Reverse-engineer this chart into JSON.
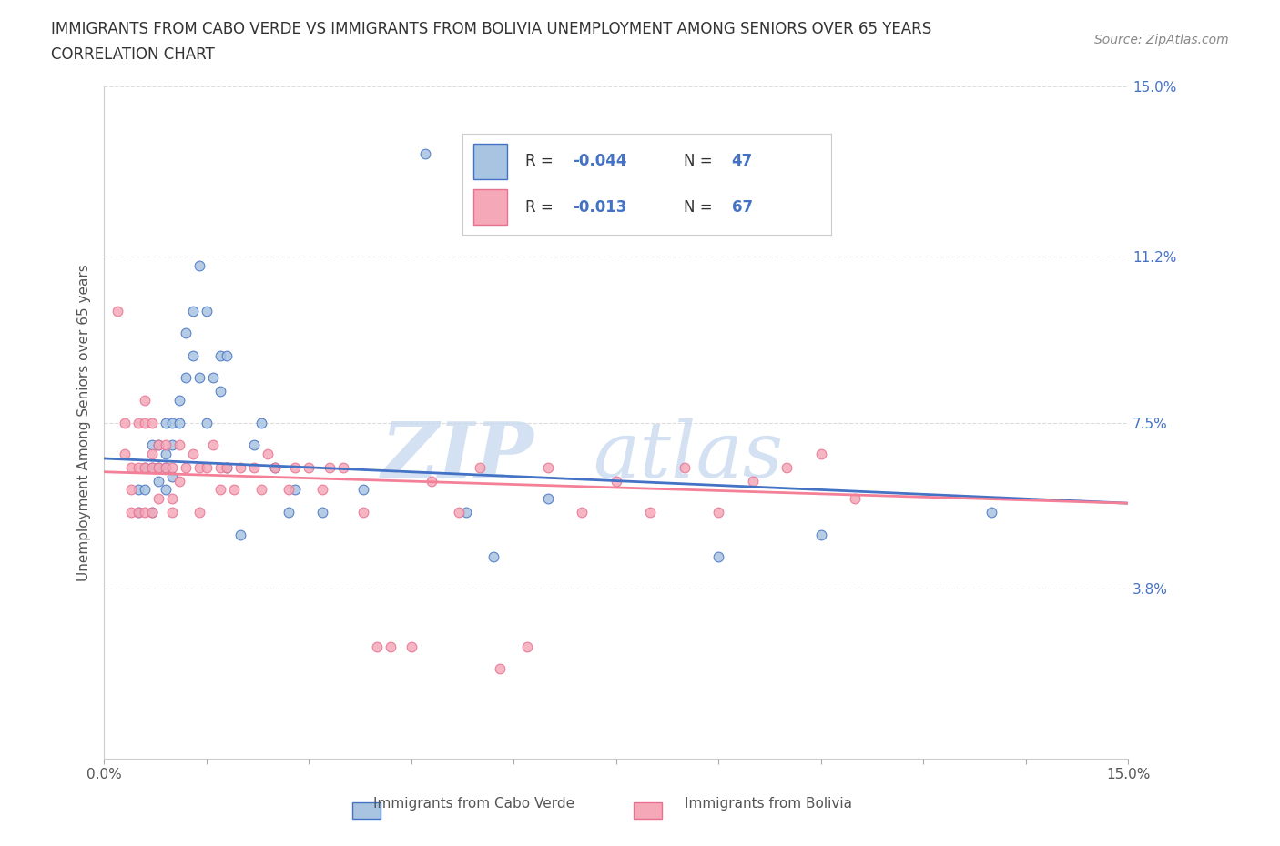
{
  "title_line1": "IMMIGRANTS FROM CABO VERDE VS IMMIGRANTS FROM BOLIVIA UNEMPLOYMENT AMONG SENIORS OVER 65 YEARS",
  "title_line2": "CORRELATION CHART",
  "source_text": "Source: ZipAtlas.com",
  "ylabel": "Unemployment Among Seniors over 65 years",
  "xmin": 0.0,
  "xmax": 0.15,
  "ymin": 0.0,
  "ymax": 0.15,
  "yticks_right": [
    0.038,
    0.075,
    0.112,
    0.15
  ],
  "ytick_labels_right": [
    "3.8%",
    "7.5%",
    "11.2%",
    "15.0%"
  ],
  "legend_r1": "-0.044",
  "legend_n1": "47",
  "legend_r2": "-0.013",
  "legend_n2": "67",
  "cabo_verde_color": "#a8c4e0",
  "bolivia_color": "#f4a8b8",
  "cabo_verde_edge_color": "#4472c4",
  "bolivia_edge_color": "#e87090",
  "cabo_verde_line_color": "#4472c4",
  "bolivia_line_color": "#f48098",
  "cabo_verde_scatter_x": [
    0.005,
    0.005,
    0.006,
    0.006,
    0.007,
    0.007,
    0.007,
    0.008,
    0.008,
    0.008,
    0.009,
    0.009,
    0.009,
    0.009,
    0.01,
    0.01,
    0.01,
    0.011,
    0.011,
    0.012,
    0.012,
    0.013,
    0.013,
    0.014,
    0.014,
    0.015,
    0.015,
    0.016,
    0.017,
    0.017,
    0.018,
    0.018,
    0.02,
    0.022,
    0.023,
    0.025,
    0.027,
    0.028,
    0.032,
    0.038,
    0.047,
    0.053,
    0.057,
    0.065,
    0.09,
    0.105,
    0.13
  ],
  "cabo_verde_scatter_y": [
    0.06,
    0.055,
    0.065,
    0.06,
    0.07,
    0.065,
    0.055,
    0.07,
    0.065,
    0.062,
    0.075,
    0.068,
    0.065,
    0.06,
    0.075,
    0.07,
    0.063,
    0.08,
    0.075,
    0.095,
    0.085,
    0.1,
    0.09,
    0.085,
    0.11,
    0.075,
    0.1,
    0.085,
    0.082,
    0.09,
    0.09,
    0.065,
    0.05,
    0.07,
    0.075,
    0.065,
    0.055,
    0.06,
    0.055,
    0.06,
    0.135,
    0.055,
    0.045,
    0.058,
    0.045,
    0.05,
    0.055
  ],
  "bolivia_scatter_x": [
    0.002,
    0.003,
    0.003,
    0.004,
    0.004,
    0.004,
    0.005,
    0.005,
    0.005,
    0.006,
    0.006,
    0.006,
    0.006,
    0.007,
    0.007,
    0.007,
    0.007,
    0.008,
    0.008,
    0.008,
    0.009,
    0.009,
    0.01,
    0.01,
    0.01,
    0.011,
    0.011,
    0.012,
    0.013,
    0.014,
    0.014,
    0.015,
    0.016,
    0.017,
    0.017,
    0.018,
    0.019,
    0.02,
    0.022,
    0.023,
    0.024,
    0.025,
    0.027,
    0.028,
    0.03,
    0.032,
    0.033,
    0.035,
    0.038,
    0.04,
    0.042,
    0.045,
    0.048,
    0.052,
    0.055,
    0.058,
    0.062,
    0.065,
    0.07,
    0.075,
    0.08,
    0.085,
    0.09,
    0.095,
    0.1,
    0.105,
    0.11
  ],
  "bolivia_scatter_y": [
    0.1,
    0.075,
    0.068,
    0.065,
    0.06,
    0.055,
    0.075,
    0.065,
    0.055,
    0.08,
    0.075,
    0.065,
    0.055,
    0.075,
    0.068,
    0.065,
    0.055,
    0.07,
    0.065,
    0.058,
    0.07,
    0.065,
    0.065,
    0.058,
    0.055,
    0.07,
    0.062,
    0.065,
    0.068,
    0.065,
    0.055,
    0.065,
    0.07,
    0.065,
    0.06,
    0.065,
    0.06,
    0.065,
    0.065,
    0.06,
    0.068,
    0.065,
    0.06,
    0.065,
    0.065,
    0.06,
    0.065,
    0.065,
    0.055,
    0.025,
    0.025,
    0.025,
    0.062,
    0.055,
    0.065,
    0.02,
    0.025,
    0.065,
    0.055,
    0.062,
    0.055,
    0.065,
    0.055,
    0.062,
    0.065,
    0.068,
    0.058
  ],
  "cabo_verde_trend_x": [
    0.0,
    0.15
  ],
  "cabo_verde_trend_y": [
    0.067,
    0.057
  ],
  "bolivia_trend_x": [
    0.0,
    0.15
  ],
  "bolivia_trend_y": [
    0.064,
    0.057
  ],
  "background_color": "#ffffff",
  "grid_color": "#dddddd",
  "watermark_zip_color": "#c5d8ee",
  "watermark_atlas_color": "#c5d8ee"
}
